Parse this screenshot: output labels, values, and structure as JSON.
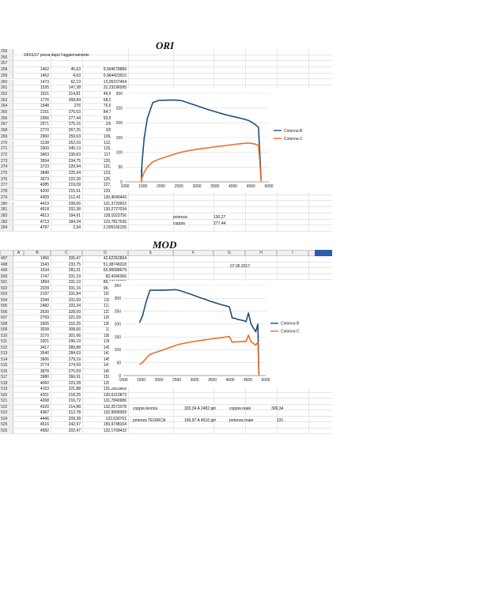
{
  "ori": {
    "title": "ORI",
    "note": "24/01/17 prova dopo l'aggiornamento",
    "rows": [
      {
        "n": "255",
        "a": "",
        "b": "",
        "c": ""
      },
      {
        "n": "256",
        "a": "",
        "b": "",
        "c": ""
      },
      {
        "n": "257",
        "a": "",
        "b": "",
        "c": ""
      },
      {
        "n": "258",
        "a": "1462",
        "b": "45,63",
        "c": "9,504678889"
      },
      {
        "n": "259",
        "a": "1462",
        "b": "4,63",
        "c": "0,964423915"
      },
      {
        "n": "260",
        "a": "1473",
        "b": "62,19",
        "c": "13,05157464"
      },
      {
        "n": "261",
        "a": "1535",
        "b": "147,38",
        "c": "32,23196095"
      },
      {
        "n": "262",
        "a": "1621",
        "b": "214,81",
        "c": "49,61090136"
      },
      {
        "n": "263",
        "a": "1776",
        "b": "268,84",
        "c": "68,02623825"
      },
      {
        "n": "264",
        "a": "1948",
        "b": "276",
        "c": "76,60156495"
      },
      {
        "n": "265",
        "a": "2151",
        "b": "276,63",
        "c": "84,77724413"
      },
      {
        "n": "266",
        "a": "2366",
        "b": "277,44",
        "c": "93,52407548"
      },
      {
        "n": "267",
        "a": "2571",
        "b": "275,16",
        "c": "100,792214"
      },
      {
        "n": "268",
        "a": "2770",
        "b": "267,25",
        "c": "105,471978"
      },
      {
        "n": "269",
        "a": "2960",
        "b": "259,63",
        "c": "109,4929689"
      },
      {
        "n": "270",
        "a": "3138",
        "b": "252,03",
        "c": "112,6784676"
      },
      {
        "n": "271",
        "a": "3300",
        "b": "245,13",
        "c": "115,2524093"
      },
      {
        "n": "272",
        "a": "3453",
        "b": "239,63",
        "c": "117,8901102"
      },
      {
        "n": "273",
        "a": "3594",
        "b": "234,75",
        "c": "120,2052072"
      },
      {
        "n": "274",
        "a": "3723",
        "b": "229,94",
        "c": "121,9683562"
      },
      {
        "n": "275",
        "a": "3848",
        "b": "225,94",
        "c": "123,8704728"
      },
      {
        "n": "276",
        "a": "3973",
        "b": "222,28",
        "c": "125,8225726"
      },
      {
        "n": "277",
        "a": "4085",
        "b": "219,09",
        "c": "127,5129296"
      },
      {
        "n": "278",
        "a": "4200",
        "b": "215,91",
        "c": "129,1997447"
      },
      {
        "n": "279",
        "a": "4309",
        "b": "212,41",
        "c": "130,4040443"
      },
      {
        "n": "280",
        "a": "4419",
        "b": "208,66",
        "c": "131,3720002"
      },
      {
        "n": "281",
        "a": "4518",
        "b": "202,38",
        "c": "130,2727034"
      },
      {
        "n": "282",
        "a": "4613",
        "b": "194,91",
        "c": "128,1023756"
      },
      {
        "n": "283",
        "a": "4713",
        "b": "184,34",
        "c": "123,7817535"
      },
      {
        "n": "284",
        "a": "4787",
        "b": "2,94",
        "c": "2,005166155"
      }
    ],
    "potenza_label": "potenza",
    "potenza_value": "130,27",
    "coppia_label": "coppia",
    "coppia_value": "277,44"
  },
  "mod": {
    "title": "MOD",
    "col_headers": [
      "A",
      "B",
      "C",
      "D",
      "E",
      "F",
      "G",
      "H",
      "I",
      "J"
    ],
    "date": "07.06.2017",
    "rows": [
      {
        "n": "497",
        "a": "1456",
        "b": "205,47",
        "c": "42,62352894"
      },
      {
        "n": "498",
        "a": "1543",
        "b": "233,75",
        "c": "51,38746018"
      },
      {
        "n": "499",
        "a": "1634",
        "b": "283,31",
        "c": "65,95588679"
      },
      {
        "n": "500",
        "a": "1747",
        "b": "331,19",
        "c": "82,4346366"
      },
      {
        "n": "501",
        "a": "1894",
        "b": "331,19",
        "c": "89,37103705"
      },
      {
        "n": "502",
        "a": "2039",
        "b": "331,16",
        "c": "96,20434949"
      },
      {
        "n": "503",
        "a": "2197",
        "b": "331,84",
        "c": "103,8719774"
      },
      {
        "n": "504",
        "a": "2349",
        "b": "332,69",
        "c": "111,3428597"
      },
      {
        "n": "505",
        "a": "2482",
        "b": "333,34",
        "c": "117,8769298"
      },
      {
        "n": "506",
        "a": "2630",
        "b": "328,59",
        "c": "123,1259795"
      },
      {
        "n": "507",
        "a": "2769",
        "b": "321,69",
        "c": "126,9152907"
      },
      {
        "n": "508",
        "a": "2905",
        "b": "315,25",
        "c": "130,4790661"
      },
      {
        "n": "509",
        "a": "3038",
        "b": "308,66",
        "c": "133,600391"
      },
      {
        "n": "510",
        "a": "3170",
        "b": "301,66",
        "c": "136,2437525"
      },
      {
        "n": "511",
        "a": "3301",
        "b": "296,19",
        "c": "138,8311026"
      },
      {
        "n": "512",
        "a": "3417",
        "b": "289,88",
        "c": "141,1246374"
      },
      {
        "n": "513",
        "a": "3540",
        "b": "284,63",
        "c": "143,5567251"
      },
      {
        "n": "514",
        "a": "3666",
        "b": "279,19",
        "c": "145,9045358"
      },
      {
        "n": "515",
        "a": "3774",
        "b": "274,59",
        "c": "147,6475417"
      },
      {
        "n": "516",
        "a": "3878",
        "b": "270,69",
        "c": "149,6614354"
      },
      {
        "n": "517",
        "a": "3980",
        "b": "266,91",
        "c": "151,3517772"
      },
      {
        "n": "518",
        "a": "4060",
        "b": "223,28",
        "c": "129,1562612"
      },
      {
        "n": "519",
        "a": "4153",
        "b": "221,88",
        "c": "131,2863868"
      },
      {
        "n": "520",
        "a": "4201",
        "b": "218,25",
        "c": "130,6310873"
      },
      {
        "n": "521",
        "a": "4268",
        "b": "216,72",
        "c": "131,7840986"
      },
      {
        "n": "522",
        "a": "4320",
        "b": "214,88",
        "c": "132,2572078"
      },
      {
        "n": "523",
        "a": "4387",
        "b": "212,78",
        "c": "132,9958369"
      },
      {
        "n": "524",
        "a": "4446",
        "b": "209,38",
        "c": "132,630761"
      },
      {
        "n": "525",
        "a": "4516",
        "b": "242,97",
        "c": "156,9748104"
      },
      {
        "n": "526",
        "a": "4582",
        "b": "202,47",
        "c": "132,1768432"
      }
    ],
    "coppia_teorica_label": "coppia teorica",
    "coppia_teorica_value": "333,34 A 2482 giri",
    "coppia_reale_label": "coppia reale",
    "coppia_reale_value": "306,34",
    "potenza_teorica_label": "potenza TEORICA",
    "potenza_teorica_value": "156,97 A 4516 giri",
    "potenza_reale_label": "potenza reale",
    "potenza_reale_value": "131"
  },
  "chart_data": [
    {
      "type": "line",
      "title": "",
      "xlim": [
        0,
        5000
      ],
      "ylim": [
        0,
        300
      ],
      "x_ticks": [
        "1000",
        "1500",
        "2000",
        "2500",
        "3000",
        "3500",
        "4000",
        "4500",
        "5000"
      ],
      "y_ticks": [
        "0",
        "50",
        "100",
        "150",
        "200",
        "250",
        "300"
      ],
      "legend_position": "right",
      "series": [
        {
          "name": "Colonna B",
          "color": "#1f4e79",
          "x": [
            1462,
            1462,
            1473,
            1535,
            1621,
            1776,
            1948,
            2151,
            2366,
            2571,
            2770,
            2960,
            3138,
            3300,
            3453,
            3594,
            3723,
            3848,
            3973,
            4085,
            4200,
            4309,
            4419,
            4518,
            4613,
            4713,
            4787
          ],
          "y": [
            45.63,
            4.63,
            62.19,
            147.38,
            214.81,
            268.84,
            276,
            276.63,
            277.44,
            275.16,
            267.25,
            259.63,
            252.03,
            245.13,
            239.63,
            234.75,
            229.94,
            225.94,
            222.28,
            219.09,
            215.91,
            212.41,
            208.66,
            202.38,
            194.91,
            184.34,
            2.94
          ]
        },
        {
          "name": "Colonna C",
          "color": "#e8702a",
          "x": [
            1462,
            1462,
            1473,
            1535,
            1621,
            1776,
            1948,
            2151,
            2366,
            2571,
            2770,
            2960,
            3138,
            3300,
            3453,
            3594,
            3723,
            3848,
            3973,
            4085,
            4200,
            4309,
            4419,
            4518,
            4613,
            4713,
            4787
          ],
          "y": [
            9.5,
            0.96,
            13.05,
            32.23,
            49.61,
            68.03,
            76.6,
            84.78,
            93.52,
            100.79,
            105.47,
            109.49,
            112.68,
            115.25,
            117.89,
            120.21,
            121.97,
            123.87,
            125.82,
            127.51,
            129.2,
            130.4,
            131.37,
            130.27,
            128.1,
            123.78,
            2.0
          ]
        }
      ]
    },
    {
      "type": "line",
      "title": "",
      "xlim": [
        0,
        5000
      ],
      "ylim": [
        0,
        350
      ],
      "x_ticks": [
        "1000",
        "1500",
        "2000",
        "2500",
        "3000",
        "3500",
        "4000",
        "4500",
        "5000"
      ],
      "y_ticks": [
        "0",
        "50",
        "100",
        "150",
        "200",
        "250",
        "300",
        "350"
      ],
      "legend_position": "right",
      "series": [
        {
          "name": "Colonna B",
          "color": "#1f4e79",
          "x": [
            1456,
            1543,
            1634,
            1747,
            1894,
            2039,
            2197,
            2349,
            2482,
            2630,
            2769,
            2905,
            3038,
            3170,
            3301,
            3417,
            3540,
            3666,
            3774,
            3878,
            3980,
            4060,
            4153,
            4201,
            4268,
            4320,
            4387,
            4446,
            4516,
            4582,
            4650,
            4720,
            4780,
            4800,
            4810
          ],
          "y": [
            205.47,
            233.75,
            283.31,
            331.19,
            331.19,
            331.16,
            331.84,
            332.69,
            333.34,
            328.59,
            321.69,
            315.25,
            308.66,
            301.66,
            296.19,
            289.88,
            284.63,
            279.19,
            274.59,
            270.69,
            266.91,
            223.28,
            221.88,
            218.25,
            216.72,
            214.88,
            212.78,
            209.38,
            242.97,
            202.47,
            185,
            170,
            200,
            60,
            0
          ]
        },
        {
          "name": "Colonna C",
          "color": "#e8702a",
          "x": [
            1456,
            1543,
            1634,
            1747,
            1894,
            2039,
            2197,
            2349,
            2482,
            2630,
            2769,
            2905,
            3038,
            3170,
            3301,
            3417,
            3540,
            3666,
            3774,
            3878,
            3980,
            4060,
            4153,
            4201,
            4268,
            4320,
            4387,
            4446,
            4516,
            4582,
            4650,
            4720,
            4780,
            4800,
            4810
          ],
          "y": [
            42.62,
            51.39,
            65.96,
            82.43,
            89.37,
            96.2,
            103.87,
            111.34,
            117.88,
            123.13,
            126.92,
            130.48,
            133.6,
            136.24,
            138.83,
            141.12,
            143.56,
            145.9,
            147.65,
            149.66,
            151.35,
            129.16,
            131.29,
            130.63,
            131.78,
            132.26,
            133.0,
            132.63,
            156.97,
            132.18,
            125,
            118,
            130,
            40,
            0
          ]
        }
      ]
    }
  ]
}
